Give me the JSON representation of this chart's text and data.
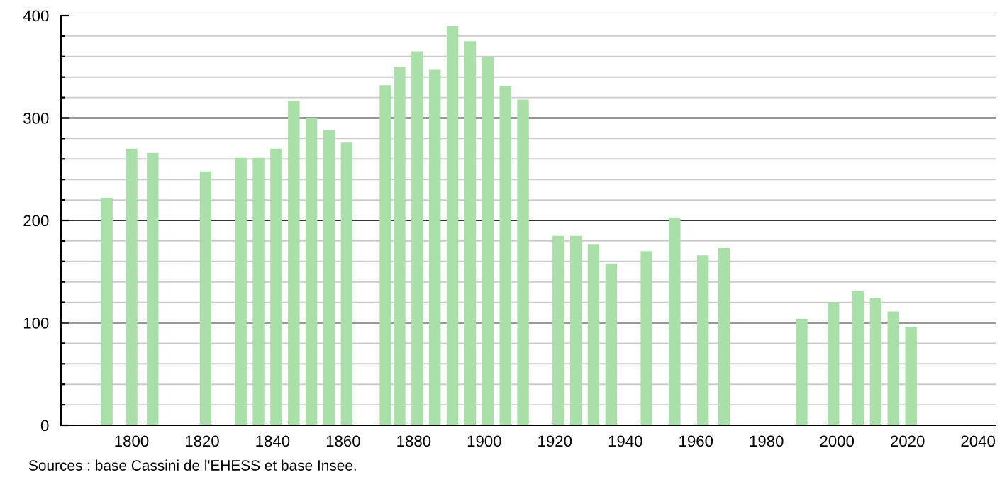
{
  "chart_data": {
    "type": "bar",
    "x": [
      1793,
      1800,
      1806,
      1821,
      1831,
      1836,
      1841,
      1846,
      1851,
      1856,
      1861,
      1872,
      1876,
      1881,
      1886,
      1891,
      1896,
      1901,
      1906,
      1911,
      1921,
      1926,
      1931,
      1936,
      1946,
      1954,
      1962,
      1968,
      1990,
      1999,
      2006,
      2011,
      2016,
      2021
    ],
    "values": [
      222,
      270,
      266,
      248,
      261,
      261,
      270,
      317,
      300,
      288,
      276,
      332,
      350,
      365,
      347,
      390,
      375,
      360,
      331,
      318,
      185,
      185,
      177,
      158,
      170,
      203,
      166,
      173,
      104,
      120,
      131,
      124,
      111,
      96
    ],
    "color": "#a8e0a8",
    "xlim": [
      1780,
      2045
    ],
    "xticks": [
      1800,
      1820,
      1840,
      1860,
      1880,
      1900,
      1920,
      1940,
      1960,
      1980,
      2000,
      2020,
      2040
    ],
    "ylim": [
      0,
      400
    ],
    "yticks": [
      0,
      {
        "value": 20,
        "label": null
      },
      {
        "value": 40,
        "label": null
      },
      {
        "value": 60,
        "label": null
      },
      {
        "value": 80,
        "label": null
      },
      100,
      {
        "value": 120,
        "label": null
      },
      {
        "value": 140,
        "label": null
      },
      {
        "value": 160,
        "label": null
      },
      {
        "value": 180,
        "label": null
      },
      200,
      {
        "value": 220,
        "label": null
      },
      {
        "value": 240,
        "label": null
      },
      {
        "value": 260,
        "label": null
      },
      {
        "value": 280,
        "label": null
      },
      300,
      {
        "value": 320,
        "label": null
      },
      {
        "value": 340,
        "label": null
      },
      {
        "value": 360,
        "label": null
      },
      {
        "value": 380,
        "label": null
      },
      400
    ],
    "grid": "y",
    "annotations": [
      "Sources : base Cassini de l'EHESS et base Insee."
    ]
  }
}
